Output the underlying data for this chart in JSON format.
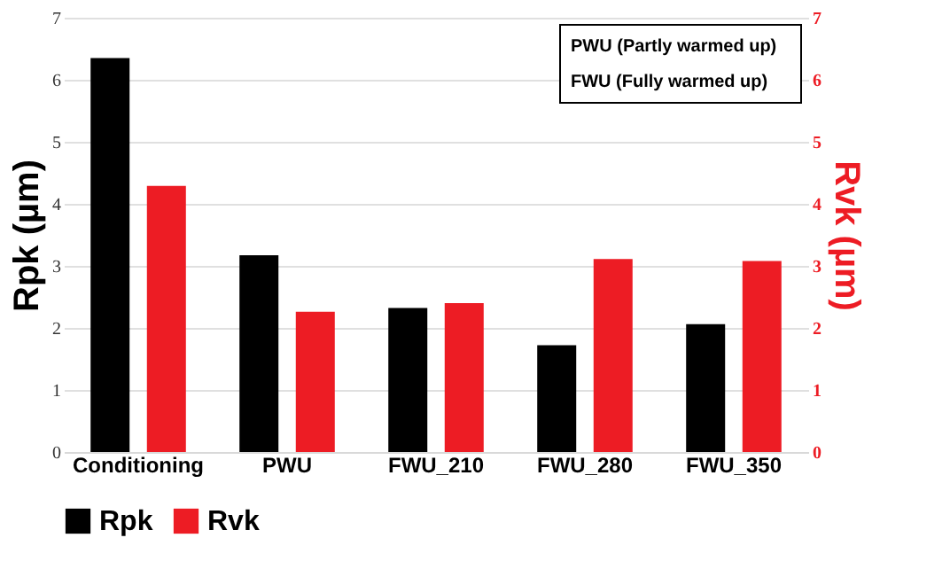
{
  "chart_data": {
    "type": "bar",
    "categories": [
      "Conditioning",
      "PWU",
      "FWU_210",
      "FWU_280",
      "FWU_350"
    ],
    "series": [
      {
        "name": "Rpk",
        "color": "#000000",
        "values": [
          6.35,
          3.17,
          2.32,
          1.72,
          2.06
        ]
      },
      {
        "name": "Rvk",
        "color": "#ed1c24",
        "axis": "y2",
        "values": [
          4.29,
          2.26,
          2.4,
          3.11,
          3.08
        ]
      }
    ],
    "ylabel": "Rpk (µm)",
    "y2label": "Rvk (µm)",
    "ylim": [
      0,
      7
    ],
    "yticks": [
      0,
      1,
      2,
      3,
      4,
      5,
      6,
      7
    ],
    "y2lim": [
      0,
      7
    ],
    "y2ticks": [
      0,
      1,
      2,
      3,
      4,
      5,
      6,
      7
    ],
    "annotations": [
      "PWU (Partly warmed up)",
      "FWU (Fully warmed up)"
    ],
    "grid": "y",
    "legend": "bottom"
  }
}
